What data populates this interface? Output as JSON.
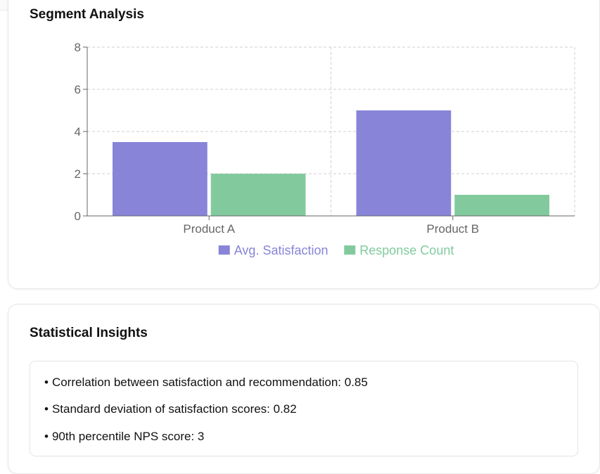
{
  "segment_card": {
    "title": "Segment Analysis"
  },
  "chart_data": {
    "type": "bar",
    "categories": [
      "Product A",
      "Product B"
    ],
    "series": [
      {
        "name": "Avg. Satisfaction",
        "values": [
          3.5,
          5
        ],
        "color": "#8884d8"
      },
      {
        "name": "Response Count",
        "values": [
          2,
          1
        ],
        "color": "#82ca9d"
      }
    ],
    "ylim": [
      0,
      8
    ],
    "yticks": [
      0,
      2,
      4,
      6,
      8
    ],
    "grid": true,
    "legend_position": "bottom-center",
    "xlabel": "",
    "ylabel": "",
    "title": "Segment Analysis"
  },
  "insights_card": {
    "title": "Statistical Insights",
    "items": [
      "Correlation between satisfaction and recommendation: 0.85",
      "Standard deviation of satisfaction scores: 0.82",
      "90th percentile NPS score: 3"
    ],
    "bullet": "•"
  }
}
